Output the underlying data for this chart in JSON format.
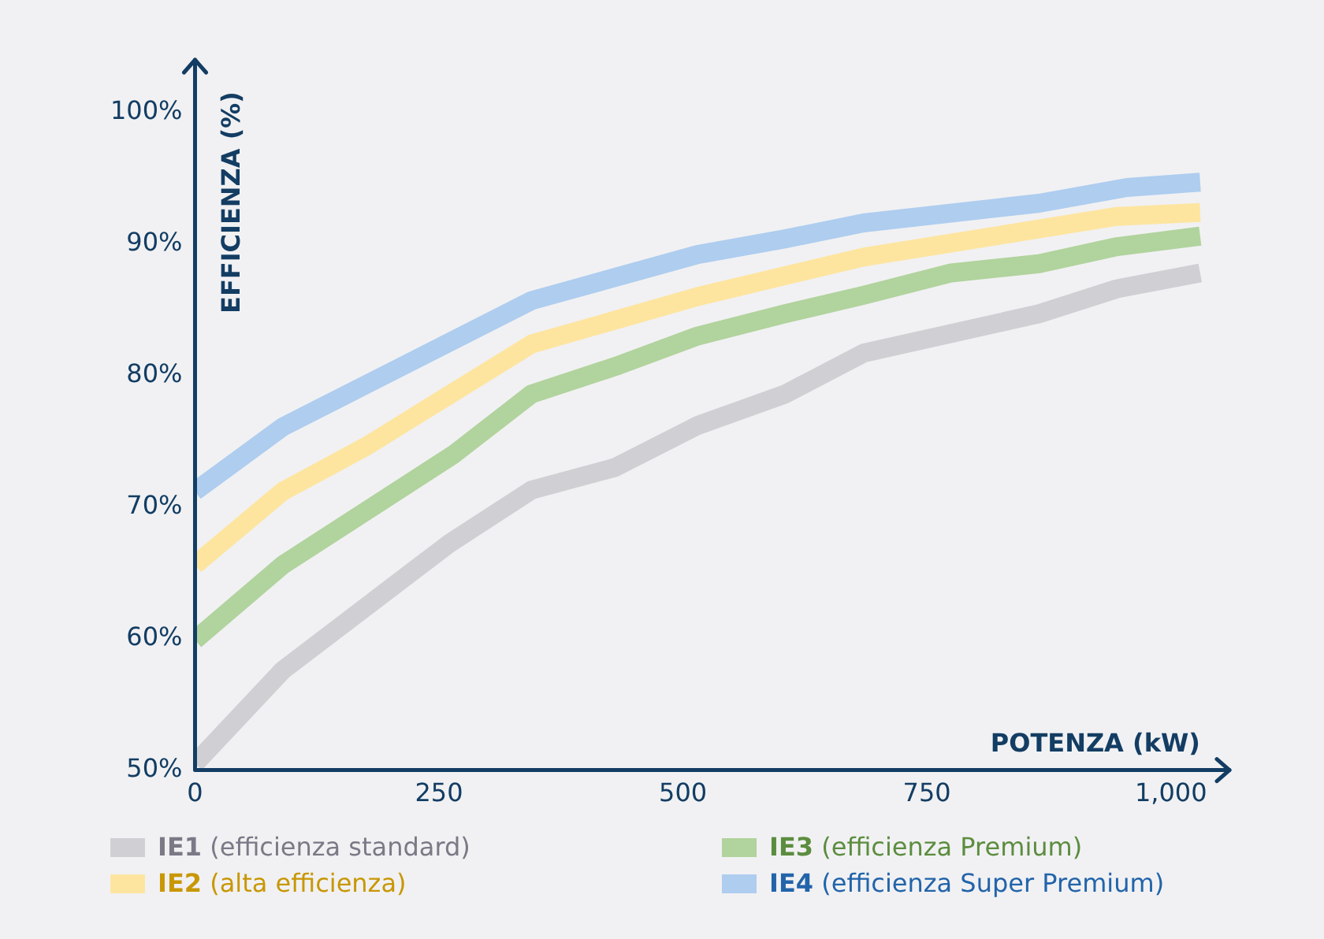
{
  "chart_data": {
    "type": "line",
    "xlabel": "POTENZA (kW)",
    "ylabel": "EFFICIENZA (%)",
    "xlim": [
      0,
      1060
    ],
    "ylim": [
      50,
      104
    ],
    "xticks": [
      0,
      250,
      500,
      750,
      {
        "value": 1000,
        "label": "1,000"
      }
    ],
    "yticks": [
      {
        "value": 50,
        "label": "50%"
      },
      {
        "value": 60,
        "label": "60%"
      },
      {
        "value": 70,
        "label": "70%"
      },
      {
        "value": 80,
        "label": "80%"
      },
      {
        "value": 90,
        "label": "90%"
      },
      {
        "value": 100,
        "label": "100%"
      }
    ],
    "grid": false,
    "legend": "bottom",
    "series": [
      {
        "name": "IE1 (efficienza standard)",
        "color": "#d0cfd4",
        "x": [
          0,
          90,
          260,
          345,
          430,
          515,
          605,
          685,
          865,
          945,
          1030
        ],
        "values": [
          50.5,
          57.6,
          67.2,
          71.3,
          73.0,
          76.2,
          78.6,
          81.7,
          84.7,
          86.6,
          87.8
        ]
      },
      {
        "name": "IE2 (alta efficienza)",
        "color": "#fde5a0",
        "x": [
          0,
          90,
          175,
          345,
          515,
          605,
          685,
          945,
          1030
        ],
        "values": [
          65.6,
          71.2,
          74.6,
          82.4,
          86.0,
          87.6,
          89.0,
          92.1,
          92.4
        ]
      },
      {
        "name": "IE3 (efficienza Premium)",
        "color": "#b1d39d",
        "x": [
          0,
          90,
          265,
          345,
          435,
          515,
          605,
          685,
          775,
          865,
          945,
          1030
        ],
        "values": [
          59.9,
          65.6,
          74.0,
          78.6,
          80.8,
          83.0,
          84.7,
          86.1,
          87.8,
          88.5,
          89.8,
          90.6
        ]
      },
      {
        "name": "IE4 (efficienza Super Premium)",
        "color": "#aecdef",
        "x": [
          0,
          90,
          175,
          345,
          515,
          605,
          685,
          865,
          955,
          1030
        ],
        "values": [
          71.2,
          76.1,
          79.3,
          85.7,
          89.2,
          90.4,
          91.6,
          93.1,
          94.3,
          94.7
        ]
      }
    ]
  }
}
